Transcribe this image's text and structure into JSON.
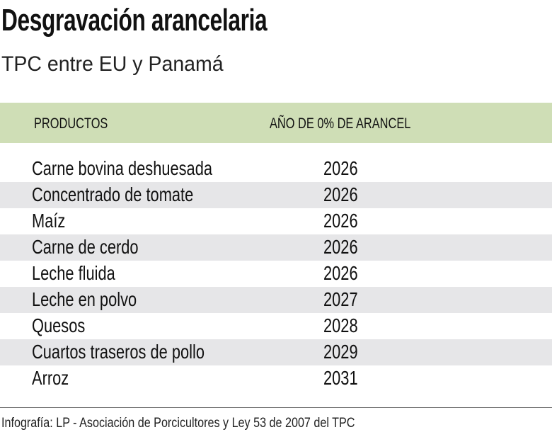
{
  "title": "Desgravación arancelaria",
  "subtitle": "TPC entre EU y Panamá",
  "colors": {
    "header_band": "#cfdeb6",
    "alt_row": "#e6e6e8"
  },
  "chart_data": {
    "type": "table",
    "columns": [
      "PRODUCTOS",
      "AÑO DE 0% DE ARANCEL"
    ],
    "rows": [
      [
        "Carne bovina deshuesada",
        "2026"
      ],
      [
        "Concentrado de tomate",
        "2026"
      ],
      [
        "Maíz",
        "2026"
      ],
      [
        "Carne de cerdo",
        "2026"
      ],
      [
        "Leche fluida",
        "2026"
      ],
      [
        "Leche en polvo",
        "2027"
      ],
      [
        "Quesos",
        "2028"
      ],
      [
        "Cuartos traseros de pollo",
        "2029"
      ],
      [
        "Arroz",
        "2031"
      ]
    ]
  },
  "footer": "Infografía: LP -  Asociación de Porcicultores y  Ley 53 de 2007 del TPC"
}
